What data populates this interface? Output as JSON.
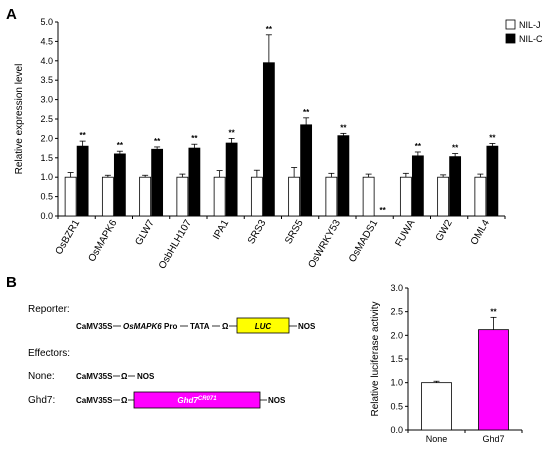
{
  "panel_a_label": "A",
  "panel_b_label": "B",
  "chart_data": [
    {
      "type": "bar",
      "ylabel": "Relative expression level",
      "ylim": [
        0,
        5.0
      ],
      "yticks": [
        "0.0",
        "0.5",
        "1.0",
        "1.5",
        "2.0",
        "2.5",
        "3.0",
        "3.5",
        "4.0",
        "4.5",
        "5.0"
      ],
      "categories": [
        "OsBZR1",
        "OsMAPK6",
        "GLW7",
        "OsbHLH107",
        "IPA1",
        "SRS3",
        "SRS5",
        "OsWRKY53",
        "OsMADS1",
        "FUWA",
        "GW2",
        "OML4"
      ],
      "series": [
        {
          "name": "NIL-J",
          "color": "#ffffff",
          "values": [
            1.0,
            1.0,
            1.0,
            1.0,
            1.0,
            1.0,
            1.0,
            1.0,
            1.0,
            1.0,
            1.0,
            1.0
          ],
          "errors": [
            0.12,
            0.05,
            0.05,
            0.08,
            0.17,
            0.18,
            0.25,
            0.1,
            0.08,
            0.1,
            0.06,
            0.08
          ]
        },
        {
          "name": "NIL-C",
          "color": "#000000",
          "values": [
            1.8,
            1.6,
            1.72,
            1.75,
            1.88,
            3.95,
            2.35,
            2.07,
            0.0,
            1.55,
            1.53,
            1.8
          ],
          "errors": [
            0.13,
            0.07,
            0.06,
            0.1,
            0.12,
            0.72,
            0.18,
            0.06,
            0.0,
            0.1,
            0.08,
            0.07
          ]
        }
      ],
      "significance": [
        "**",
        "**",
        "**",
        "**",
        "**",
        "**",
        "**",
        "**",
        "**",
        "**",
        "**",
        "**"
      ],
      "legend": "top-right",
      "grid": false
    },
    {
      "type": "bar",
      "ylabel": "Relative luciferase activity",
      "ylim": [
        0,
        3.0
      ],
      "yticks": [
        "0.0",
        "0.5",
        "1.0",
        "1.5",
        "2.0",
        "2.5",
        "3.0"
      ],
      "categories": [
        "None",
        "Ghd7"
      ],
      "colors": [
        "#ffffff",
        "#ff00ff"
      ],
      "values": [
        1.0,
        2.12
      ],
      "errors": [
        0.03,
        0.26
      ],
      "significance": [
        "",
        "**"
      ],
      "grid": false
    }
  ],
  "constructs": {
    "reporter_label": "Reporter:",
    "effectors_label": "Effectors:",
    "reporter": {
      "promoter": "CaMV35S",
      "gene": "OsMAPK6",
      "pro": "Pro",
      "tata": "TATA",
      "omega": "Ω",
      "luc": "LUC",
      "nos": "NOS"
    },
    "none_label": "None:",
    "none": {
      "promoter": "CaMV35S",
      "omega": "Ω",
      "nos": "NOS"
    },
    "ghd7_label": "Ghd7:",
    "ghd7": {
      "promoter": "CaMV35S",
      "omega": "Ω",
      "gene": "Ghd7",
      "sup": "CR071",
      "nos": "NOS"
    },
    "colors": {
      "luc_box": "#ffff00",
      "ghd7_box": "#ff00ff"
    }
  }
}
